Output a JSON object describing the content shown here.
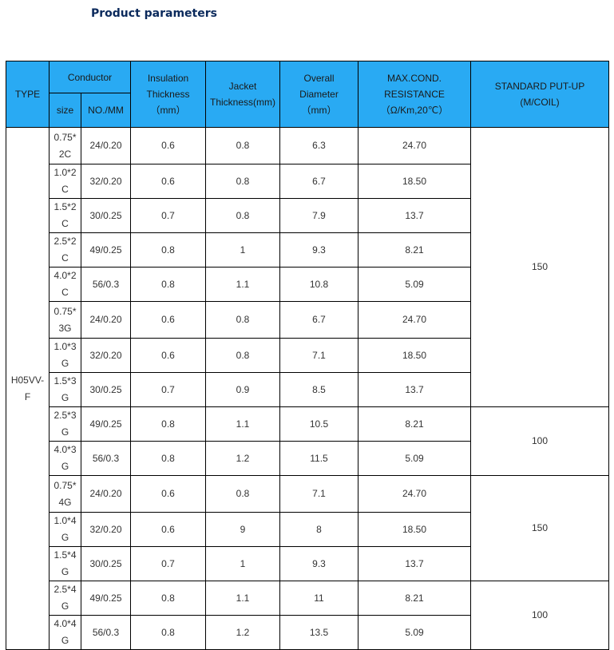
{
  "title": "Product parameters",
  "header": {
    "type": "TYPE",
    "conductor": "Conductor",
    "size": "size",
    "no_mm": "NO./MM",
    "insulation": [
      "Insulation",
      "Thickness",
      "（mm）"
    ],
    "jacket": [
      "Jacket",
      "Thickness(mm)"
    ],
    "overall": [
      "Overall",
      "Diameter",
      "（mm）"
    ],
    "resistance": [
      "MAX.COND.",
      "RESISTANCE",
      "（Ω/Km,20℃）"
    ],
    "putup": [
      "STANDARD  PUT-UP",
      "(M/COIL)"
    ]
  },
  "type_value": "H05VV-F",
  "rows": [
    {
      "size": "0.75*2C",
      "no": "24/0.20",
      "ins": "0.6",
      "jacket": "0.8",
      "od": "6.3",
      "res": "24.70"
    },
    {
      "size": "1.0*2C",
      "no": "32/0.20",
      "ins": "0.6",
      "jacket": "0.8",
      "od": "6.7",
      "res": "18.50"
    },
    {
      "size": "1.5*2C",
      "no": "30/0.25",
      "ins": "0.7",
      "jacket": "0.8",
      "od": "7.9",
      "res": "13.7"
    },
    {
      "size": "2.5*2C",
      "no": "49/0.25",
      "ins": "0.8",
      "jacket": "1",
      "od": "9.3",
      "res": "8.21"
    },
    {
      "size": "4.0*2C",
      "no": "56/0.3",
      "ins": "0.8",
      "jacket": "1.1",
      "od": "10.8",
      "res": "5.09"
    },
    {
      "size": "0.75*3G",
      "no": "24/0.20",
      "ins": "0.6",
      "jacket": "0.8",
      "od": "6.7",
      "res": "24.70"
    },
    {
      "size": "1.0*3G",
      "no": "32/0.20",
      "ins": "0.6",
      "jacket": "0.8",
      "od": "7.1",
      "res": "18.50"
    },
    {
      "size": "1.5*3G",
      "no": "30/0.25",
      "ins": "0.7",
      "jacket": "0.9",
      "od": "8.5",
      "res": "13.7"
    },
    {
      "size": "2.5*3G",
      "no": "49/0.25",
      "ins": "0.8",
      "jacket": "1.1",
      "od": "10.5",
      "res": "8.21"
    },
    {
      "size": "4.0*3G",
      "no": "56/0.3",
      "ins": "0.8",
      "jacket": "1.2",
      "od": "11.5",
      "res": "5.09"
    },
    {
      "size": "0.75*4G",
      "no": "24/0.20",
      "ins": "0.6",
      "jacket": "0.8",
      "od": "7.1",
      "res": "24.70"
    },
    {
      "size": "1.0*4G",
      "no": "32/0.20",
      "ins": "0.6",
      "jacket": "9",
      "od": "8",
      "res": "18.50"
    },
    {
      "size": "1.5*4G",
      "no": "30/0.25",
      "ins": "0.7",
      "jacket": "1",
      "od": "9.3",
      "res": "13.7"
    },
    {
      "size": "2.5*4G",
      "no": "49/0.25",
      "ins": "0.8",
      "jacket": "1.1",
      "od": "11",
      "res": "8.21"
    },
    {
      "size": "4.0*4G",
      "no": "56/0.3",
      "ins": "0.8",
      "jacket": "1.2",
      "od": "13.5",
      "res": "5.09"
    }
  ],
  "putup_groups": [
    {
      "value": "150",
      "rows": 8
    },
    {
      "value": "100",
      "rows": 2
    },
    {
      "value": "150",
      "rows": 3
    },
    {
      "value": "100",
      "rows": 2
    }
  ],
  "colors": {
    "header_bg": "#29aaf3",
    "title": "#0b2a5c"
  }
}
